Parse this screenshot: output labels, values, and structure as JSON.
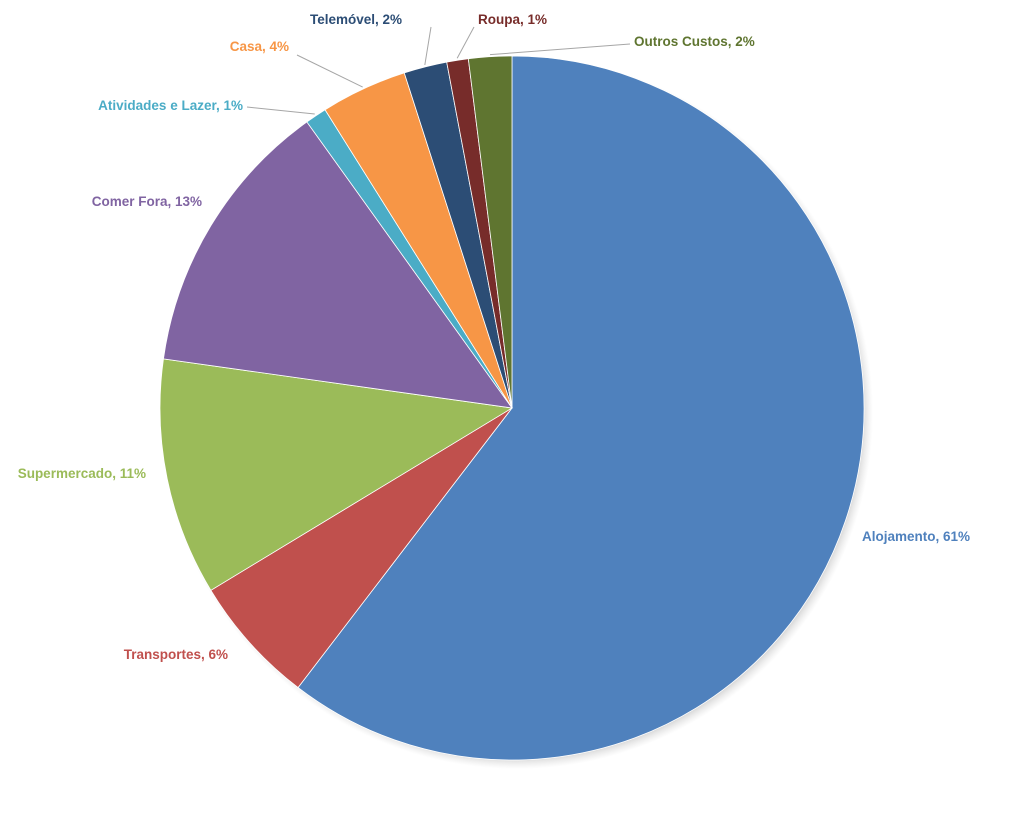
{
  "chart_data": {
    "type": "pie",
    "title": "",
    "start_angle_deg": 0,
    "direction": "clockwise",
    "slices": [
      {
        "name": "Alojamento",
        "value": 61,
        "label": "Alojamento, 61%",
        "color": "#4F81BD",
        "label_color": "#4F81BD"
      },
      {
        "name": "Transportes",
        "value": 6,
        "label": "Transportes, 6%",
        "color": "#C0504D",
        "label_color": "#C0504D"
      },
      {
        "name": "Supermercado",
        "value": 11,
        "label": "Supermercado, 11%",
        "color": "#9BBB59",
        "label_color": "#9BBB59"
      },
      {
        "name": "Comer Fora",
        "value": 13,
        "label": "Comer Fora, 13%",
        "color": "#8064A2",
        "label_color": "#8064A2"
      },
      {
        "name": "Atividades e Lazer",
        "value": 1,
        "label": "Atividades e Lazer, 1%",
        "color": "#4BACC6",
        "label_color": "#4BACC6"
      },
      {
        "name": "Casa",
        "value": 4,
        "label": "Casa, 4%",
        "color": "#F79646",
        "label_color": "#F79646"
      },
      {
        "name": "Telemóvel",
        "value": 2,
        "label": "Telemóvel, 2%",
        "color": "#2C4D75",
        "label_color": "#2C4D75"
      },
      {
        "name": "Roupa",
        "value": 1,
        "label": "Roupa, 1%",
        "color": "#772C2A",
        "label_color": "#772C2A"
      },
      {
        "name": "Outros Custos",
        "value": 2,
        "label": "Outros Custos, 2%",
        "color": "#5F7530",
        "label_color": "#5F7530"
      }
    ],
    "legend": "none",
    "data_labels": "outside-with-leader-lines"
  }
}
